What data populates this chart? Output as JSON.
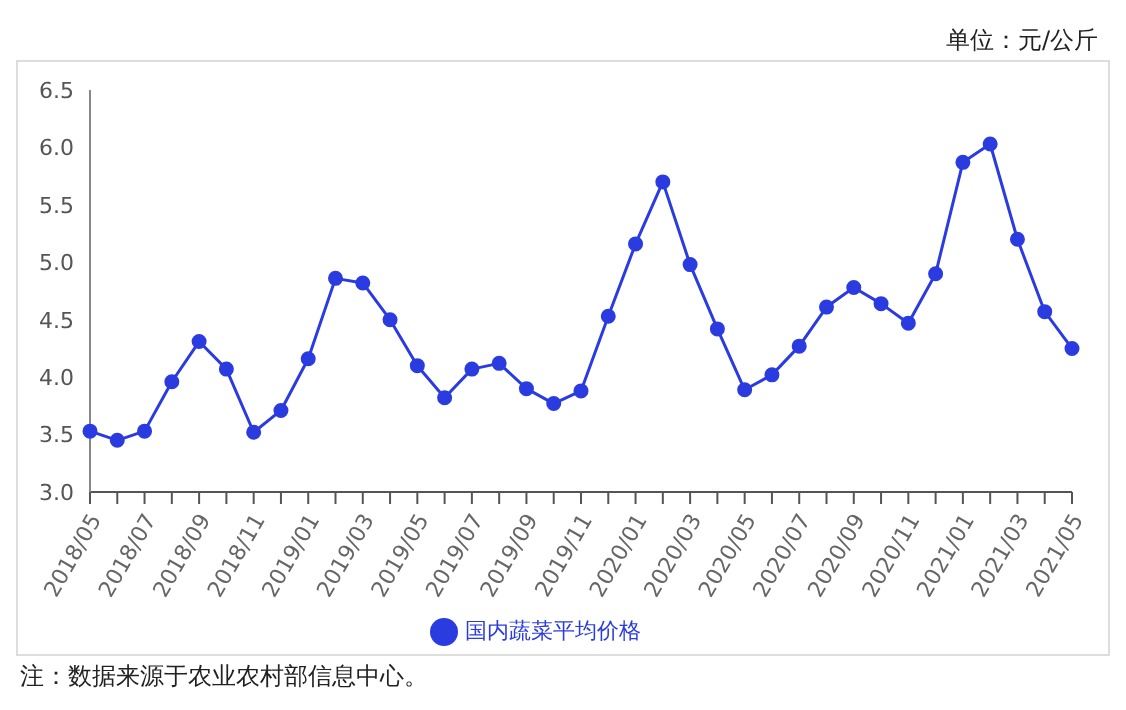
{
  "chart_data": {
    "type": "line",
    "annotations": [
      "单位：元/公斤",
      "注：数据来源于农业农村部信息中心。"
    ],
    "categories": [
      "2018/05",
      null,
      "2018/07",
      null,
      "2018/09",
      null,
      "2018/11",
      null,
      "2019/01",
      null,
      "2019/03",
      null,
      "2019/05",
      null,
      "2019/07",
      null,
      "2019/09",
      null,
      "2019/11",
      null,
      "2020/01",
      null,
      "2020/03",
      null,
      "2020/05",
      null,
      "2020/07",
      null,
      "2020/09",
      null,
      "2020/11",
      null,
      "2021/01",
      null,
      "2021/03",
      null,
      "2021/05"
    ],
    "series": [
      {
        "name": "国内蔬菜平均价格",
        "color": "#2a3be0",
        "values": [
          3.53,
          3.45,
          3.53,
          3.96,
          4.31,
          4.07,
          3.52,
          3.71,
          4.16,
          4.86,
          4.82,
          4.5,
          4.1,
          3.82,
          4.07,
          4.12,
          3.9,
          3.77,
          3.88,
          4.53,
          5.16,
          5.7,
          4.98,
          4.42,
          3.89,
          4.02,
          4.27,
          4.61,
          4.78,
          4.64,
          4.47,
          4.9,
          5.87,
          6.03,
          5.2,
          4.57,
          4.25
        ]
      }
    ],
    "ylim": [
      3.0,
      6.5
    ],
    "yticks": [
      {
        "value": 3.0,
        "label": "3.0"
      },
      {
        "value": 3.5,
        "label": "3.5"
      },
      {
        "value": 4.0,
        "label": "4.0"
      },
      {
        "value": 4.5,
        "label": "4.5"
      },
      {
        "value": 5.0,
        "label": "5.0"
      },
      {
        "value": 5.5,
        "label": "5.5"
      },
      {
        "value": 6.0,
        "label": "6.0"
      },
      {
        "value": 6.5,
        "label": "6.5"
      }
    ],
    "grid": false,
    "legend": "bottom",
    "marker": "circle",
    "line_style": "solid"
  }
}
